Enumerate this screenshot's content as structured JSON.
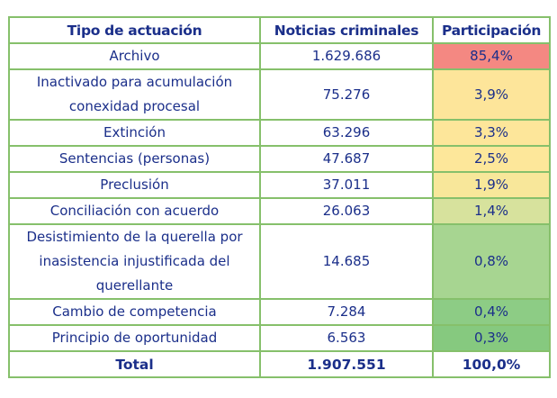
{
  "table": {
    "headers": {
      "type": "Tipo de actuación",
      "count": "Noticias criminales",
      "share": "Participación"
    },
    "rows": [
      {
        "label": "Archivo",
        "count": "1.629.686",
        "share": "85,4%",
        "color": "#f48882"
      },
      {
        "label": "Inactivado para acumulación conexidad procesal",
        "count": "75.276",
        "share": "3,9%",
        "color": "#fde59a"
      },
      {
        "label": "Extinción",
        "count": "63.296",
        "share": "3,3%",
        "color": "#fde69a"
      },
      {
        "label": "Sentencias (personas)",
        "count": "47.687",
        "share": "2,5%",
        "color": "#fde79a"
      },
      {
        "label": "Preclusión",
        "count": "37.011",
        "share": "1,9%",
        "color": "#f8e79a"
      },
      {
        "label": "Conciliación con acuerdo",
        "count": "26.063",
        "share": "1,4%",
        "color": "#d7e29d"
      },
      {
        "label": "Desistimiento de la querella por inasistencia injustificada del querellante",
        "count": "14.685",
        "share": "0,8%",
        "color": "#a7d591"
      },
      {
        "label": "Cambio de competencia",
        "count": "7.284",
        "share": "0,4%",
        "color": "#8dcc85"
      },
      {
        "label": "Principio de oportunidad",
        "count": "6.563",
        "share": "0,3%",
        "color": "#86c97f"
      }
    ],
    "total": {
      "label": "Total",
      "count": "1.907.551",
      "share": "100,0%"
    }
  }
}
